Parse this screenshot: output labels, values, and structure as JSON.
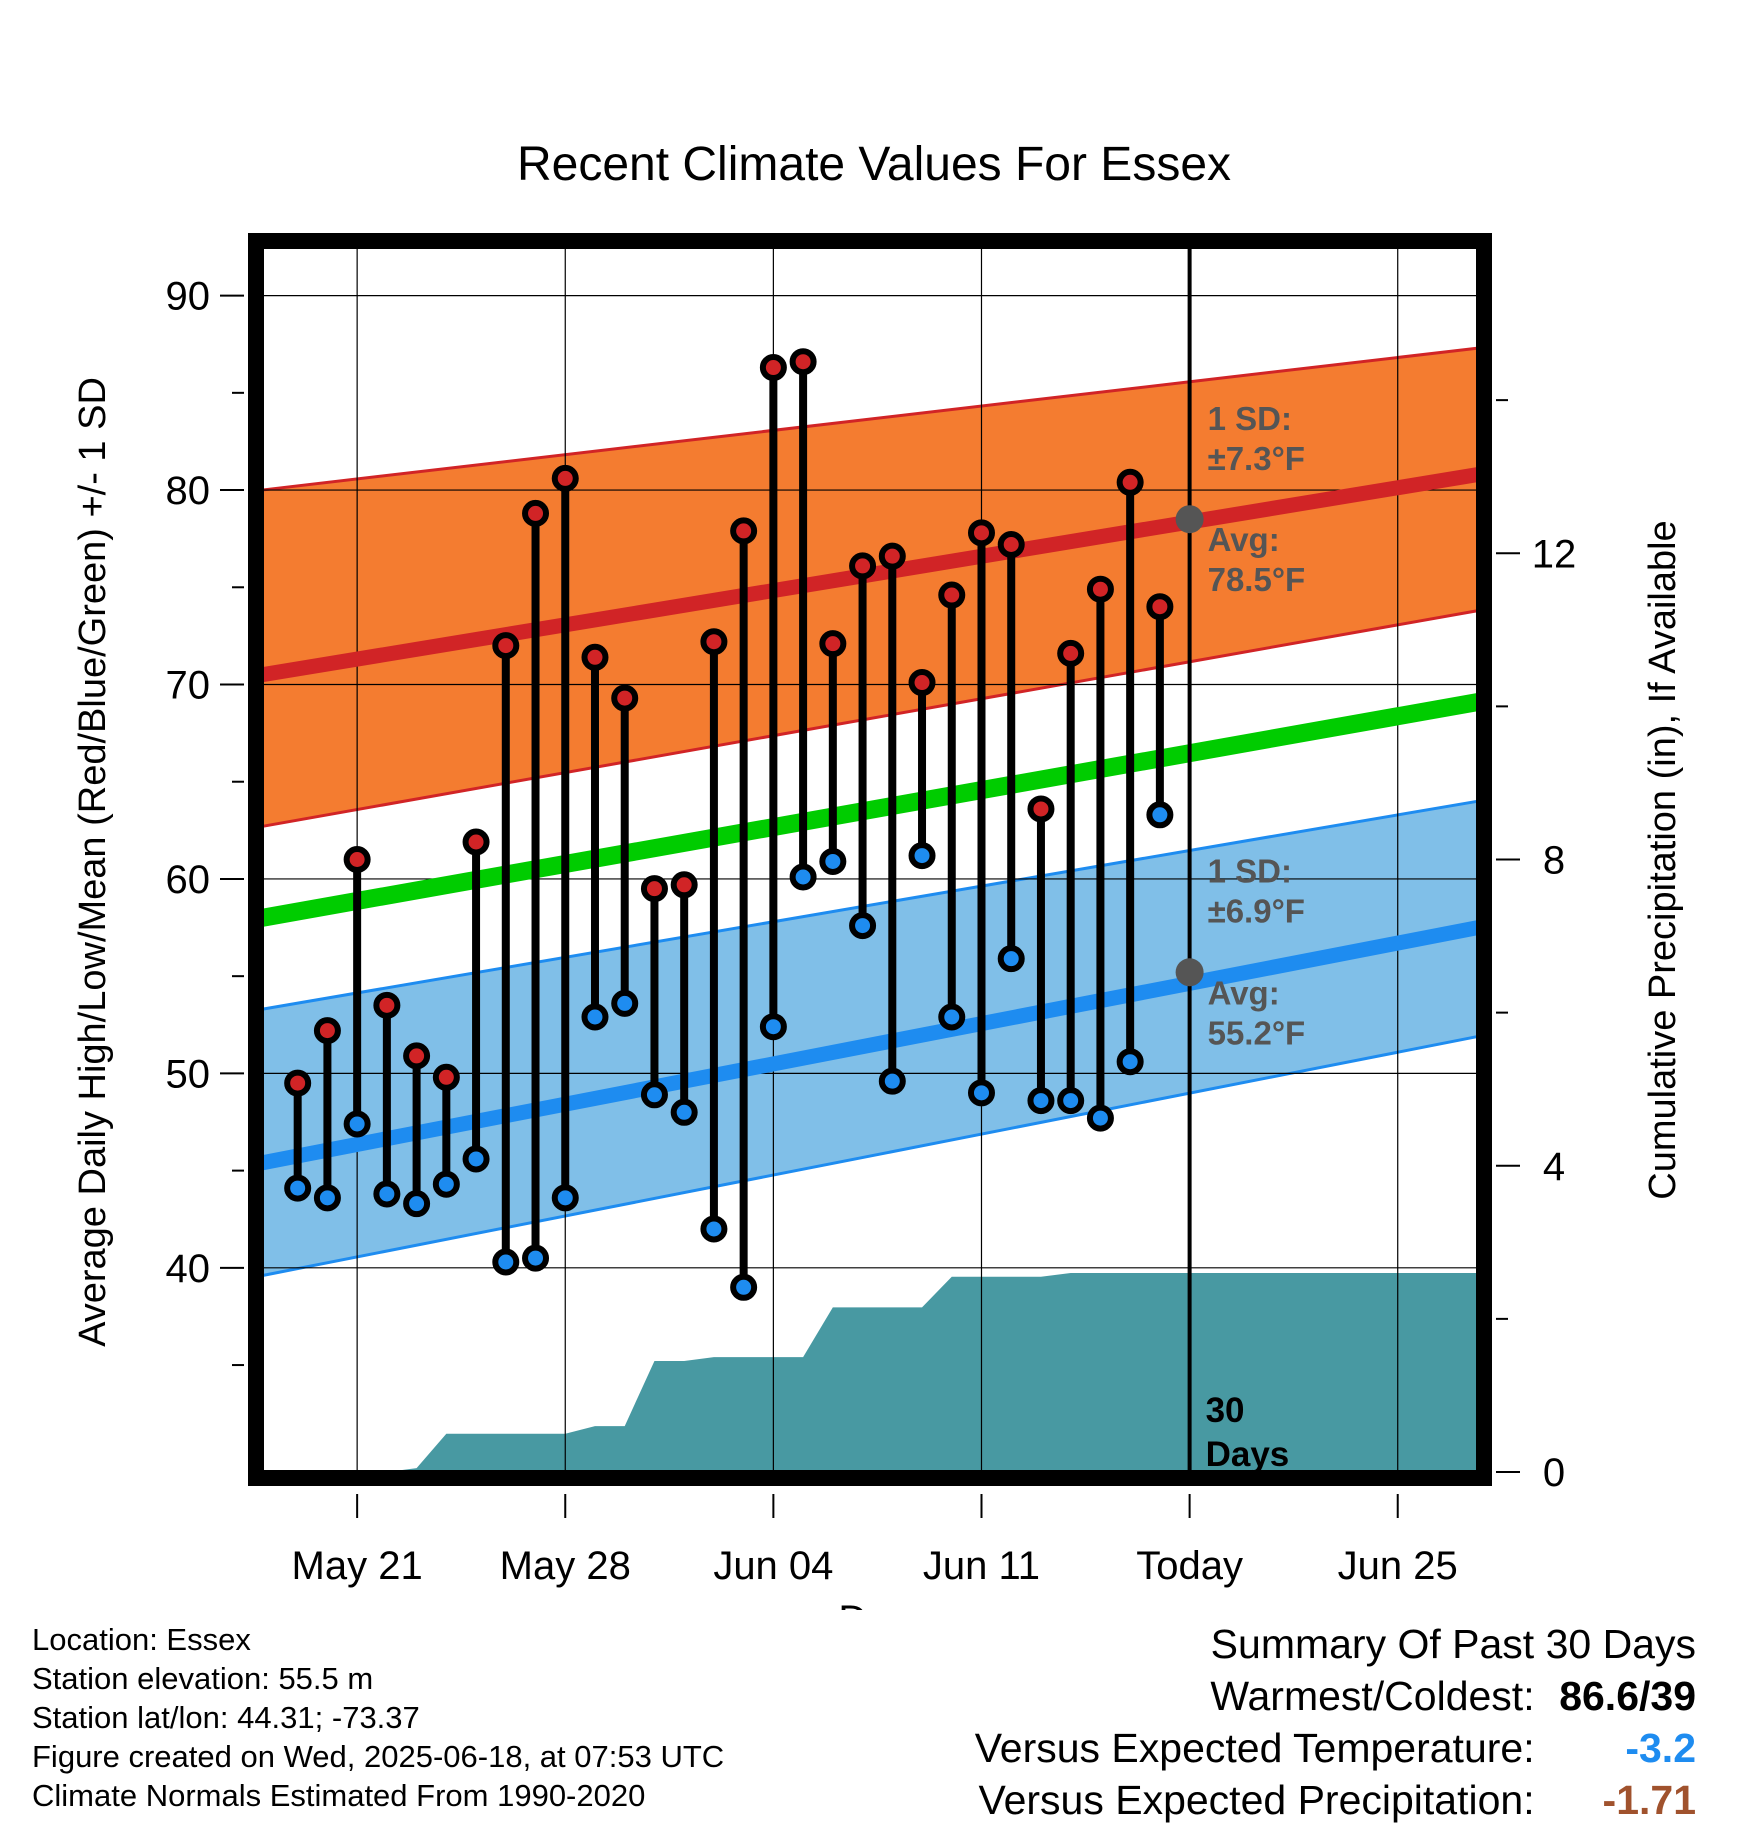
{
  "chart_data": {
    "type": "line",
    "title": "Recent Climate Values For Essex",
    "xlabel": "Day",
    "ylabel_left": "Average Daily High/Low/Mean (Red/Blue/Green) +/- 1 SD",
    "ylabel_right": "Cumulative Precipitation (in), If Available",
    "x_tick_labels": [
      "May 21",
      "May 28",
      "Jun 04",
      "Jun 11",
      "Today",
      "Jun 25"
    ],
    "x_tick_days": [
      21,
      28,
      35,
      42,
      49,
      56
    ],
    "x_range_days": [
      17.8,
      58.7
    ],
    "ylim_left": [
      29.5,
      92.5
    ],
    "yticks_left": [
      40,
      50,
      60,
      70,
      80,
      90
    ],
    "ylim_right": [
      0,
      16
    ],
    "yticks_right": [
      0,
      4,
      8,
      12
    ],
    "today_day": 49,
    "normals": {
      "days": [
        17.8,
        58.7
      ],
      "high_avg": [
        70.5,
        80.8
      ],
      "high_plus_sd": [
        80.0,
        87.3
      ],
      "high_minus_sd": [
        62.7,
        73.8
      ],
      "low_avg": [
        45.4,
        57.5
      ],
      "low_plus_sd": [
        53.3,
        64.0
      ],
      "low_minus_sd": [
        39.6,
        51.9
      ],
      "mean_avg": [
        58.0,
        69.1
      ]
    },
    "series": [
      {
        "name": "High",
        "days": [
          19,
          20,
          21,
          22,
          23,
          24,
          25,
          26,
          27,
          28,
          29,
          30,
          31,
          32,
          33,
          34,
          35,
          36,
          37,
          38,
          39,
          40,
          41,
          42,
          43,
          44,
          45,
          46,
          47,
          48
        ],
        "values": [
          49.5,
          52.2,
          61.0,
          53.5,
          50.9,
          49.8,
          61.9,
          72.0,
          78.8,
          80.6,
          71.4,
          69.3,
          59.5,
          59.7,
          72.2,
          77.9,
          86.3,
          86.6,
          72.1,
          76.1,
          76.6,
          70.1,
          74.6,
          77.8,
          77.2,
          63.6,
          71.6,
          74.9,
          80.4,
          74.0
        ]
      },
      {
        "name": "Low",
        "days": [
          19,
          20,
          21,
          22,
          23,
          24,
          25,
          26,
          27,
          28,
          29,
          30,
          31,
          32,
          33,
          34,
          35,
          36,
          37,
          38,
          39,
          40,
          41,
          42,
          43,
          44,
          45,
          46,
          47,
          48
        ],
        "values": [
          44.1,
          43.6,
          47.4,
          43.8,
          43.3,
          44.3,
          45.6,
          40.3,
          40.5,
          43.6,
          52.9,
          53.6,
          48.9,
          48.0,
          42.0,
          39.0,
          52.4,
          60.1,
          60.9,
          57.6,
          49.6,
          61.2,
          52.9,
          49.0,
          55.9,
          48.6,
          48.6,
          47.7,
          50.6,
          63.3
        ]
      }
    ],
    "precip_days": [
      17.8,
      19,
      20,
      21,
      22,
      23,
      24,
      25,
      26,
      27,
      28,
      29,
      30,
      31,
      32,
      33,
      34,
      35,
      36,
      37,
      38,
      39,
      40,
      41,
      42,
      43,
      44,
      45,
      46,
      47,
      48,
      49,
      50,
      58.7
    ],
    "precip_cum": [
      0,
      0,
      0,
      0,
      0,
      0.05,
      0.5,
      0.5,
      0.5,
      0.5,
      0.5,
      0.6,
      0.6,
      1.45,
      1.45,
      1.5,
      1.5,
      1.5,
      1.5,
      2.15,
      2.15,
      2.15,
      2.15,
      2.55,
      2.55,
      2.55,
      2.55,
      2.6,
      2.6,
      2.6,
      2.6,
      2.6,
      2.6,
      2.6
    ],
    "annotations": {
      "high_sd_label": "1 SD:",
      "high_sd_value": "±7.3°F",
      "high_avg_label": "Avg:",
      "high_avg_value": "78.5°F",
      "high_avg_at_today": 78.5,
      "low_sd_label": "1 SD:",
      "low_sd_value": "±6.9°F",
      "low_avg_label": "Avg:",
      "low_avg_value": "55.2°F",
      "low_avg_at_today": 55.2,
      "precip_label_1": "30",
      "precip_label_2": "Days"
    },
    "colors": {
      "high_band": "#f47c30",
      "high_line": "#d12426",
      "low_band": "#80bfe8",
      "low_line": "#1e8cf0",
      "mean_line": "#00cc00",
      "precip": "#4899a2",
      "high_marker": "#d12426",
      "low_marker": "#1e8cf0",
      "annotation_text": "#555555"
    }
  },
  "footer": {
    "location": "Location: Essex",
    "elevation": "Station elevation: 55.5 m",
    "latlon": "Station lat/lon: 44.31; -73.37",
    "created": "Figure created on Wed, 2025-06-18, at 07:53 UTC",
    "normals": "Climate Normals Estimated From 1990-2020"
  },
  "summary": {
    "title": "Summary Of Past 30 Days",
    "warmest_label": "Warmest/Coldest:",
    "warmest_value": "86.6/39",
    "temp_label": "Versus Expected Temperature:",
    "temp_value": "-3.2",
    "temp_color": "#1e8cf0",
    "precip_label": "Versus Expected Precipitation:",
    "precip_value": "-1.71",
    "precip_color": "#a0522d"
  }
}
